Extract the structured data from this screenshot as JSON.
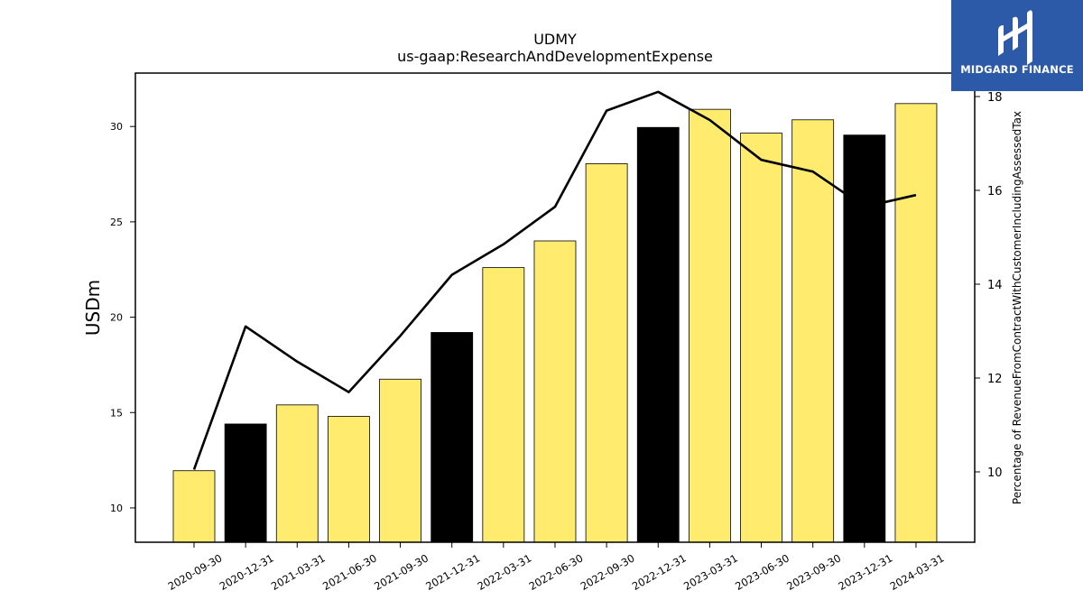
{
  "chart_data": {
    "type": "bar",
    "title": "UDMY",
    "subtitle": "us-gaap:ResearchAndDevelopmentExpense",
    "ylabel": "USDm",
    "y2label": "Percentage of RevenueFromContractWithCustomerIncludingAssessedTax",
    "categories": [
      "2020-09-30",
      "2020-12-31",
      "2021-03-31",
      "2021-06-30",
      "2021-09-30",
      "2021-12-31",
      "2022-03-31",
      "2022-06-30",
      "2022-09-30",
      "2022-12-31",
      "2023-03-31",
      "2023-06-30",
      "2023-09-30",
      "2023-12-31",
      "2024-03-31"
    ],
    "values": [
      11.95,
      14.4,
      15.4,
      14.8,
      16.75,
      19.2,
      22.6,
      24.0,
      28.05,
      29.95,
      30.9,
      29.65,
      30.35,
      29.55,
      31.2
    ],
    "bar_colors": [
      "#ffec6e",
      "#000000",
      "#ffec6e",
      "#ffec6e",
      "#ffec6e",
      "#000000",
      "#ffec6e",
      "#ffec6e",
      "#ffec6e",
      "#000000",
      "#ffec6e",
      "#ffec6e",
      "#ffec6e",
      "#000000",
      "#ffec6e"
    ],
    "line_values": [
      10.05,
      13.1,
      12.35,
      11.7,
      12.9,
      14.2,
      14.85,
      15.65,
      17.7,
      18.1,
      17.5,
      16.65,
      16.4,
      15.65,
      15.9
    ],
    "ylim": [
      8.2,
      32.8
    ],
    "y2lim": [
      8.5,
      18.5
    ],
    "yticks": [
      10,
      15,
      20,
      25,
      30
    ],
    "y2ticks": [
      10,
      12,
      14,
      16,
      18
    ],
    "line_color": "#000000"
  },
  "logo": {
    "text": "MIDGARD FINANCE",
    "color": "#2d5aa8"
  }
}
